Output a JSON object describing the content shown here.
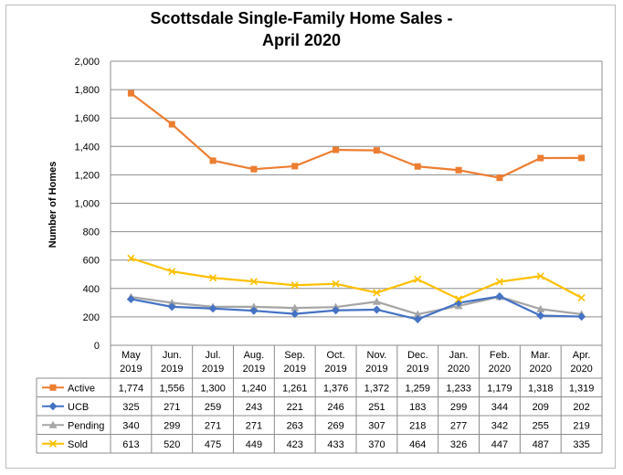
{
  "chart_data": {
    "type": "line",
    "title": "Scottsdale Single-Family Home Sales -\nApril 2020",
    "title_lines": [
      "Scottsdale Single-Family Home Sales -",
      "April 2020"
    ],
    "ylabel": "Number of Homes",
    "ylim": [
      0,
      2000
    ],
    "yticks": [
      "0",
      "200",
      "400",
      "600",
      "800",
      "1,000",
      "1,200",
      "1,400",
      "1,600",
      "1,800",
      "2,000"
    ],
    "grid": true,
    "legend": "data-table",
    "categories": [
      {
        "month": "May",
        "year": "2019"
      },
      {
        "month": "Jun.",
        "year": "2019"
      },
      {
        "month": "Jul.",
        "year": "2019"
      },
      {
        "month": "Aug.",
        "year": "2019"
      },
      {
        "month": "Sep.",
        "year": "2019"
      },
      {
        "month": "Oct.",
        "year": "2019"
      },
      {
        "month": "Nov.",
        "year": "2019"
      },
      {
        "month": "Dec.",
        "year": "2019"
      },
      {
        "month": "Jan.",
        "year": "2020"
      },
      {
        "month": "Feb.",
        "year": "2020"
      },
      {
        "month": "Mar.",
        "year": "2020"
      },
      {
        "month": "Apr.",
        "year": "2020"
      }
    ],
    "series": [
      {
        "name": "Active",
        "color": "#ed7d31",
        "marker": "square",
        "values": [
          1774,
          1556,
          1300,
          1240,
          1261,
          1376,
          1372,
          1259,
          1233,
          1179,
          1318,
          1319
        ],
        "labels": [
          "1,774",
          "1,556",
          "1,300",
          "1,240",
          "1,261",
          "1,376",
          "1,372",
          "1,259",
          "1,233",
          "1,179",
          "1,318",
          "1,319"
        ]
      },
      {
        "name": "UCB",
        "color": "#4472c4",
        "marker": "diamond",
        "values": [
          325,
          271,
          259,
          243,
          221,
          246,
          251,
          183,
          299,
          344,
          209,
          202
        ],
        "labels": [
          "325",
          "271",
          "259",
          "243",
          "221",
          "246",
          "251",
          "183",
          "299",
          "344",
          "209",
          "202"
        ]
      },
      {
        "name": "Pending",
        "color": "#a5a5a5",
        "marker": "triangle",
        "values": [
          340,
          299,
          271,
          271,
          263,
          269,
          307,
          218,
          277,
          342,
          255,
          219
        ],
        "labels": [
          "340",
          "299",
          "271",
          "271",
          "263",
          "269",
          "307",
          "218",
          "277",
          "342",
          "255",
          "219"
        ]
      },
      {
        "name": "Sold",
        "color": "#ffc000",
        "marker": "x",
        "values": [
          613,
          520,
          475,
          449,
          423,
          433,
          370,
          464,
          326,
          447,
          487,
          335
        ],
        "labels": [
          "613",
          "520",
          "475",
          "449",
          "423",
          "433",
          "370",
          "464",
          "326",
          "447",
          "487",
          "335"
        ]
      }
    ]
  }
}
